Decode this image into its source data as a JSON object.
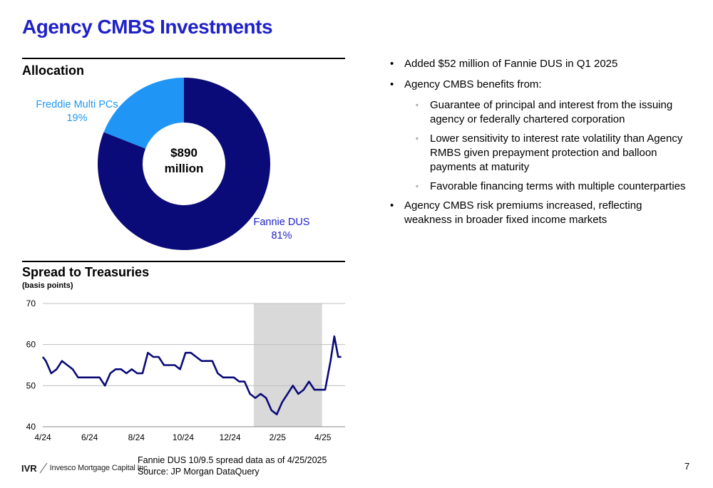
{
  "title": "Agency CMBS Investments",
  "allocation": {
    "heading": "Allocation",
    "center_line1": "$890",
    "center_line2": "million",
    "slices": [
      {
        "name": "Fannie DUS",
        "pct_label": "81%",
        "value": 81,
        "color": "#0a0a78",
        "label_color": "#1f22c8"
      },
      {
        "name": "Freddie Multi PCs",
        "pct_label": "19%",
        "value": 19,
        "color": "#1f96f5",
        "label_color": "#1f96f5"
      }
    ]
  },
  "spread": {
    "heading": "Spread to Treasuries",
    "subheading": "(basis points)"
  },
  "chart_data": {
    "type": "line",
    "title": "Spread to Treasuries",
    "ylabel": "(basis points)",
    "ylim": [
      40,
      70
    ],
    "yticks": [
      40,
      50,
      60,
      70
    ],
    "xlim": [
      "2024-04-01",
      "2025-04-30"
    ],
    "xticks": [
      {
        "label": "4/24",
        "date": "2024-04-01"
      },
      {
        "label": "6/24",
        "date": "2024-06-01"
      },
      {
        "label": "8/24",
        "date": "2024-08-01"
      },
      {
        "label": "10/24",
        "date": "2024-10-01"
      },
      {
        "label": "12/24",
        "date": "2024-12-01"
      },
      {
        "label": "2/25",
        "date": "2025-02-01"
      },
      {
        "label": "4/25",
        "date": "2025-04-01"
      }
    ],
    "shaded_region": [
      "2025-01-01",
      "2025-03-31"
    ],
    "grid": true,
    "color": "#0a0a78",
    "shade_color": "#d9d9d9",
    "series": [
      {
        "points": [
          [
            "2024-04-01",
            57
          ],
          [
            "2024-04-05",
            56
          ],
          [
            "2024-04-12",
            53
          ],
          [
            "2024-04-19",
            54
          ],
          [
            "2024-04-26",
            56
          ],
          [
            "2024-05-03",
            55
          ],
          [
            "2024-05-10",
            54
          ],
          [
            "2024-05-17",
            52
          ],
          [
            "2024-05-24",
            52
          ],
          [
            "2024-05-31",
            52
          ],
          [
            "2024-06-07",
            52
          ],
          [
            "2024-06-14",
            52
          ],
          [
            "2024-06-21",
            50
          ],
          [
            "2024-06-28",
            53
          ],
          [
            "2024-07-05",
            54
          ],
          [
            "2024-07-12",
            54
          ],
          [
            "2024-07-19",
            53
          ],
          [
            "2024-07-26",
            54
          ],
          [
            "2024-08-02",
            53
          ],
          [
            "2024-08-09",
            53
          ],
          [
            "2024-08-16",
            58
          ],
          [
            "2024-08-23",
            57
          ],
          [
            "2024-08-30",
            57
          ],
          [
            "2024-09-06",
            55
          ],
          [
            "2024-09-13",
            55
          ],
          [
            "2024-09-20",
            55
          ],
          [
            "2024-09-27",
            54
          ],
          [
            "2024-10-04",
            58
          ],
          [
            "2024-10-11",
            58
          ],
          [
            "2024-10-18",
            57
          ],
          [
            "2024-10-25",
            56
          ],
          [
            "2024-11-01",
            56
          ],
          [
            "2024-11-08",
            56
          ],
          [
            "2024-11-15",
            53
          ],
          [
            "2024-11-22",
            52
          ],
          [
            "2024-11-29",
            52
          ],
          [
            "2024-12-06",
            52
          ],
          [
            "2024-12-13",
            51
          ],
          [
            "2024-12-20",
            51
          ],
          [
            "2024-12-27",
            48
          ],
          [
            "2025-01-03",
            47
          ],
          [
            "2025-01-10",
            48
          ],
          [
            "2025-01-17",
            47
          ],
          [
            "2025-01-24",
            44
          ],
          [
            "2025-01-31",
            43
          ],
          [
            "2025-02-07",
            46
          ],
          [
            "2025-02-14",
            48
          ],
          [
            "2025-02-21",
            50
          ],
          [
            "2025-02-28",
            48
          ],
          [
            "2025-03-07",
            49
          ],
          [
            "2025-03-14",
            51
          ],
          [
            "2025-03-21",
            49
          ],
          [
            "2025-03-28",
            49
          ],
          [
            "2025-04-04",
            49
          ],
          [
            "2025-04-11",
            56
          ],
          [
            "2025-04-16",
            62
          ],
          [
            "2025-04-21",
            57
          ],
          [
            "2025-04-25",
            57
          ]
        ]
      }
    ]
  },
  "bullets": [
    {
      "text": "Added $52 million of Fannie DUS in Q1 2025",
      "subs": []
    },
    {
      "text": "Agency CMBS benefits from:",
      "subs": [
        "Guarantee of principal and interest from the issuing agency or federally chartered corporation",
        "Lower sensitivity to interest rate volatility than Agency RMBS given prepayment protection and balloon payments at maturity",
        "Favorable financing terms with multiple counterparties"
      ]
    },
    {
      "text": "Agency CMBS risk premiums increased, reflecting weakness in broader fixed income markets",
      "subs": []
    }
  ],
  "bullet_symbol": "•",
  "sub_bullet_symbol": "◦",
  "footer": {
    "note_line1": "Fannie DUS 10/9.5 spread data as of 4/25/2025",
    "note_line2": "Source: JP Morgan DataQuery",
    "logo_short": "IVR",
    "logo_company": "Invesco Mortgage Capital Inc.",
    "page_number": "7"
  }
}
